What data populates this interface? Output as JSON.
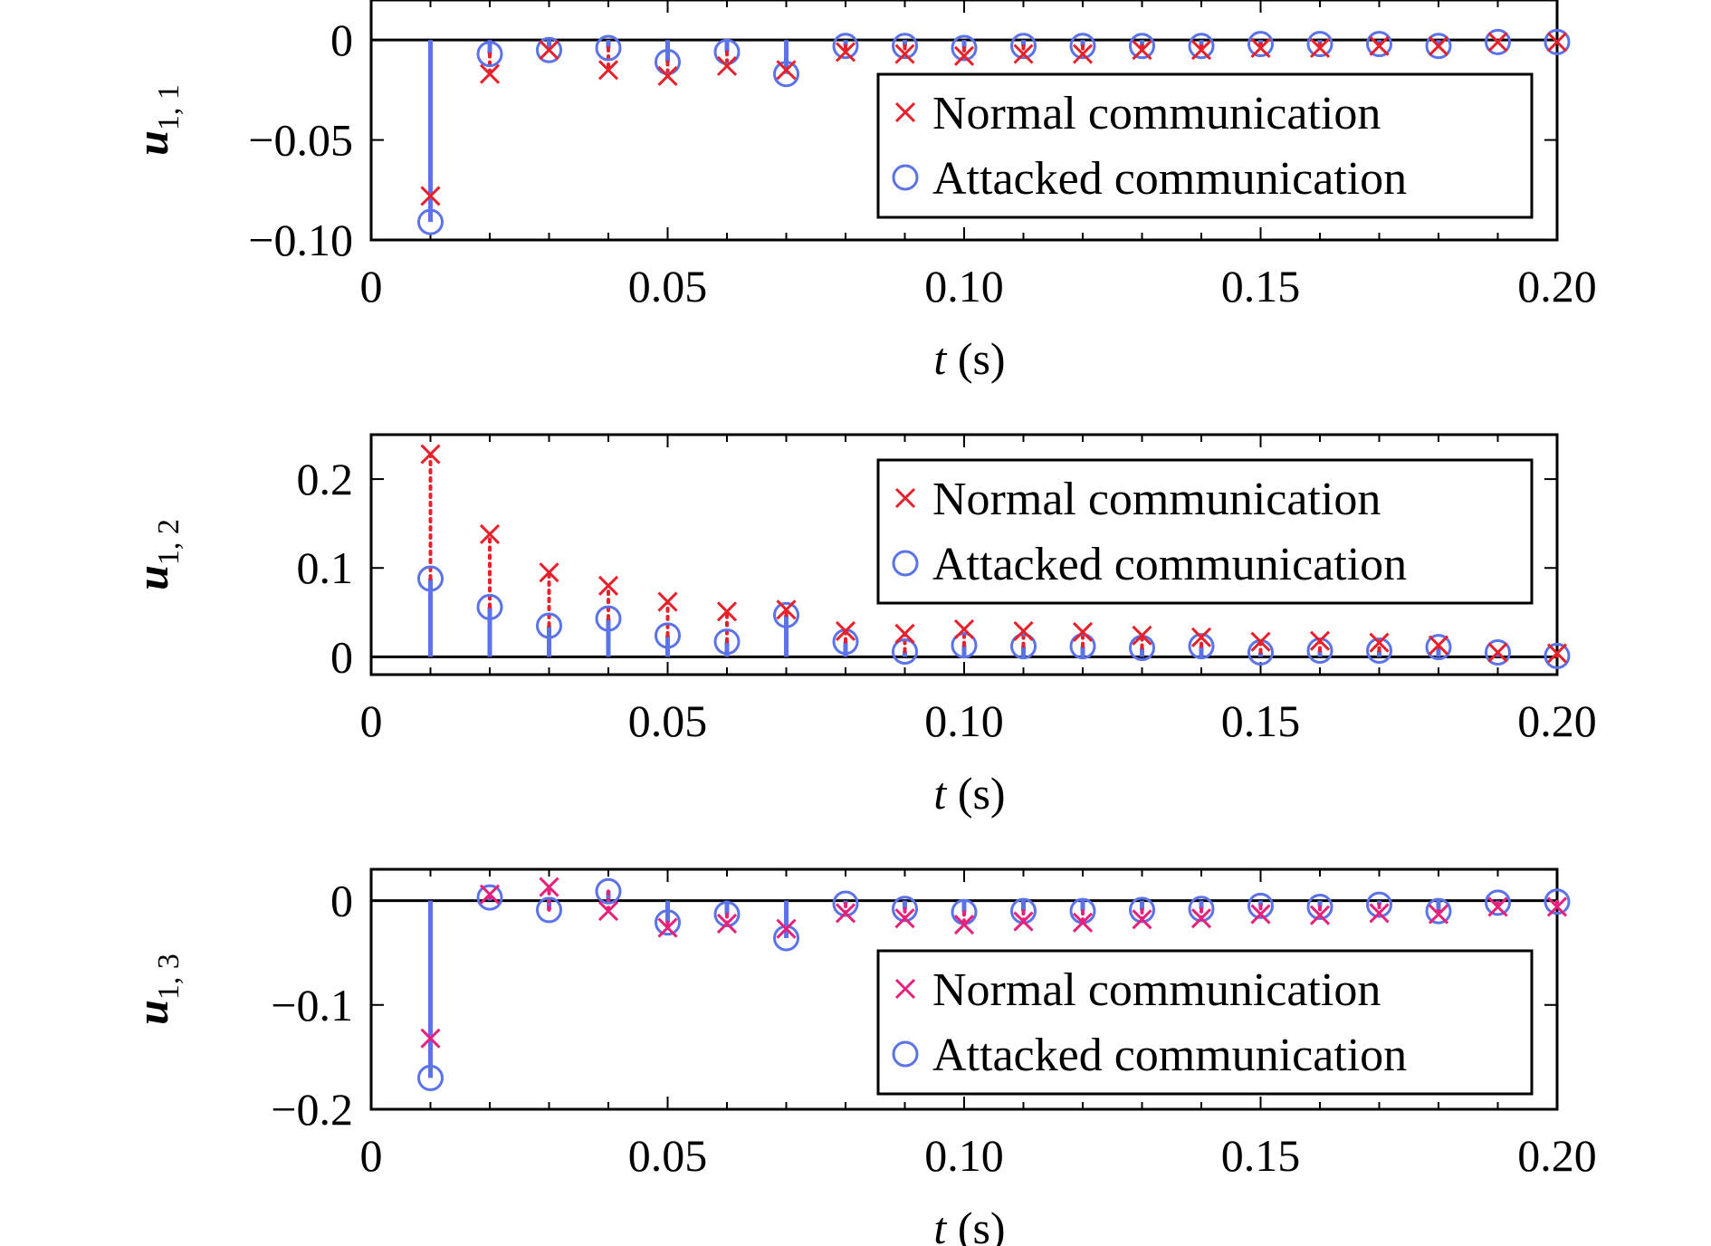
{
  "chart_data": [
    {
      "type": "scatter",
      "ylabel": "u",
      "ylabel_sub": "1, 1",
      "xlabel_var": "t",
      "xlabel_unit": " (s)",
      "xlim": [
        0,
        0.2
      ],
      "ylim": [
        -0.1,
        0.02
      ],
      "xticks": [
        0,
        0.05,
        0.1,
        0.15,
        0.2
      ],
      "xtick_labels": [
        "0",
        "0.05",
        "0.10",
        "0.15",
        "0.20"
      ],
      "yticks": [
        0,
        -0.05,
        -0.1
      ],
      "ytick_labels": [
        "0",
        "−0.05",
        "−0.10"
      ],
      "legend_position": "upper-right",
      "x": [
        0.01,
        0.02,
        0.03,
        0.04,
        0.05,
        0.06,
        0.07,
        0.08,
        0.09,
        0.1,
        0.11,
        0.12,
        0.13,
        0.14,
        0.15,
        0.16,
        0.17,
        0.18,
        0.19,
        0.2
      ],
      "series": [
        {
          "name": "Normal communication",
          "marker": "x",
          "color": "#e8202a",
          "stem_style": "dotted",
          "values": [
            -0.078,
            -0.017,
            -0.005,
            -0.015,
            -0.018,
            -0.013,
            -0.015,
            -0.006,
            -0.007,
            -0.008,
            -0.007,
            -0.007,
            -0.005,
            -0.005,
            -0.004,
            -0.004,
            -0.003,
            -0.003,
            -0.001,
            -0.001
          ]
        },
        {
          "name": "Attacked communication",
          "marker": "o",
          "color": "#5b72e8",
          "stem_style": "solid",
          "values": [
            -0.091,
            -0.007,
            -0.005,
            -0.004,
            -0.011,
            -0.006,
            -0.017,
            -0.003,
            -0.003,
            -0.004,
            -0.003,
            -0.003,
            -0.003,
            -0.003,
            -0.002,
            -0.002,
            -0.002,
            -0.003,
            -0.001,
            -0.001
          ]
        }
      ]
    },
    {
      "type": "scatter",
      "ylabel": "u",
      "ylabel_sub": "1, 2",
      "xlabel_var": "t",
      "xlabel_unit": " (s)",
      "xlim": [
        0,
        0.2
      ],
      "ylim": [
        -0.02,
        0.25
      ],
      "xticks": [
        0,
        0.05,
        0.1,
        0.15,
        0.2
      ],
      "xtick_labels": [
        "0",
        "0.05",
        "0.10",
        "0.15",
        "0.20"
      ],
      "yticks": [
        0,
        0.1,
        0.2
      ],
      "ytick_labels": [
        "0",
        "0.1",
        "0.2"
      ],
      "legend_position": "upper-right",
      "x": [
        0.01,
        0.02,
        0.03,
        0.04,
        0.05,
        0.06,
        0.07,
        0.08,
        0.09,
        0.1,
        0.11,
        0.12,
        0.13,
        0.14,
        0.15,
        0.16,
        0.17,
        0.18,
        0.19,
        0.2
      ],
      "series": [
        {
          "name": "Normal communication",
          "marker": "x",
          "color": "#e8202a",
          "stem_style": "dotted",
          "values": [
            0.228,
            0.138,
            0.095,
            0.08,
            0.062,
            0.051,
            0.053,
            0.029,
            0.026,
            0.031,
            0.029,
            0.028,
            0.024,
            0.022,
            0.017,
            0.018,
            0.016,
            0.013,
            0.005,
            0.004
          ]
        },
        {
          "name": "Attacked communication",
          "marker": "o",
          "color": "#5b72e8",
          "stem_style": "solid",
          "values": [
            0.088,
            0.056,
            0.035,
            0.043,
            0.024,
            0.017,
            0.047,
            0.017,
            0.006,
            0.013,
            0.012,
            0.012,
            0.01,
            0.012,
            0.005,
            0.007,
            0.007,
            0.011,
            0.005,
            0.001
          ]
        }
      ]
    },
    {
      "type": "scatter",
      "ylabel": "u",
      "ylabel_sub": "1, 3",
      "xlabel_var": "t",
      "xlabel_unit": " (s)",
      "xlim": [
        0,
        0.2
      ],
      "ylim": [
        -0.2,
        0.03
      ],
      "xticks": [
        0,
        0.05,
        0.1,
        0.15,
        0.2
      ],
      "xtick_labels": [
        "0",
        "0.05",
        "0.10",
        "0.15",
        "0.20"
      ],
      "yticks": [
        0,
        -0.1,
        -0.2
      ],
      "ytick_labels": [
        "0",
        "−0.1",
        "−0.2"
      ],
      "legend_position": "lower-right",
      "x": [
        0.01,
        0.02,
        0.03,
        0.04,
        0.05,
        0.06,
        0.07,
        0.08,
        0.09,
        0.1,
        0.11,
        0.12,
        0.13,
        0.14,
        0.15,
        0.16,
        0.17,
        0.18,
        0.19,
        0.2
      ],
      "series": [
        {
          "name": "Normal communication",
          "marker": "x",
          "color": "#e8207a",
          "stem_style": "dotted",
          "values": [
            -0.132,
            0.006,
            0.013,
            -0.01,
            -0.026,
            -0.022,
            -0.027,
            -0.012,
            -0.017,
            -0.023,
            -0.02,
            -0.021,
            -0.018,
            -0.017,
            -0.013,
            -0.014,
            -0.012,
            -0.013,
            -0.006,
            -0.006
          ]
        },
        {
          "name": "Attacked communication",
          "marker": "o",
          "color": "#5b72e8",
          "stem_style": "solid",
          "values": [
            -0.17,
            0.003,
            -0.009,
            0.009,
            -0.021,
            -0.013,
            -0.036,
            -0.003,
            -0.008,
            -0.011,
            -0.01,
            -0.01,
            -0.009,
            -0.008,
            -0.005,
            -0.006,
            -0.004,
            -0.01,
            -0.002,
            -0.001
          ]
        }
      ]
    }
  ]
}
